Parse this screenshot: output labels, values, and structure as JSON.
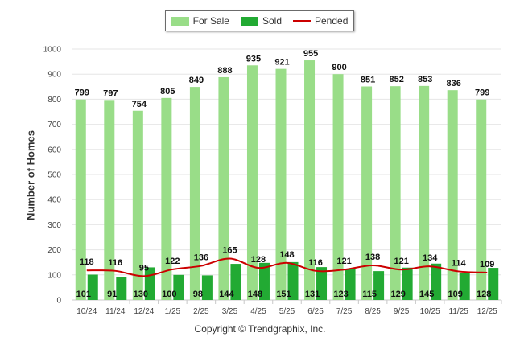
{
  "chart_data": {
    "type": "bar",
    "categories": [
      "10/24",
      "11/24",
      "12/24",
      "1/25",
      "2/25",
      "3/25",
      "4/25",
      "5/25",
      "6/25",
      "7/25",
      "8/25",
      "9/25",
      "10/25",
      "11/25",
      "12/25"
    ],
    "series": [
      {
        "name": "For Sale",
        "type": "bar",
        "color": "#99dd88",
        "values": [
          799,
          797,
          754,
          805,
          849,
          888,
          935,
          921,
          955,
          900,
          851,
          852,
          853,
          836,
          799
        ]
      },
      {
        "name": "Sold",
        "type": "bar",
        "color": "#22aa33",
        "values": [
          101,
          91,
          130,
          100,
          98,
          144,
          148,
          151,
          131,
          123,
          115,
          129,
          145,
          109,
          128
        ]
      },
      {
        "name": "Pended",
        "type": "line",
        "color": "#cc0000",
        "values": [
          118,
          116,
          95,
          122,
          136,
          165,
          128,
          148,
          116,
          121,
          138,
          121,
          134,
          114,
          109
        ]
      }
    ],
    "ylabel": "Number of Homes",
    "xlabel": "",
    "ylim": [
      0,
      1000
    ],
    "yticks": [
      0,
      100,
      200,
      300,
      400,
      500,
      600,
      700,
      800,
      900,
      1000
    ],
    "grid": true,
    "legend_position": "top-center"
  },
  "footer": {
    "copyright": "Copyright © Trendgraphix, Inc."
  }
}
